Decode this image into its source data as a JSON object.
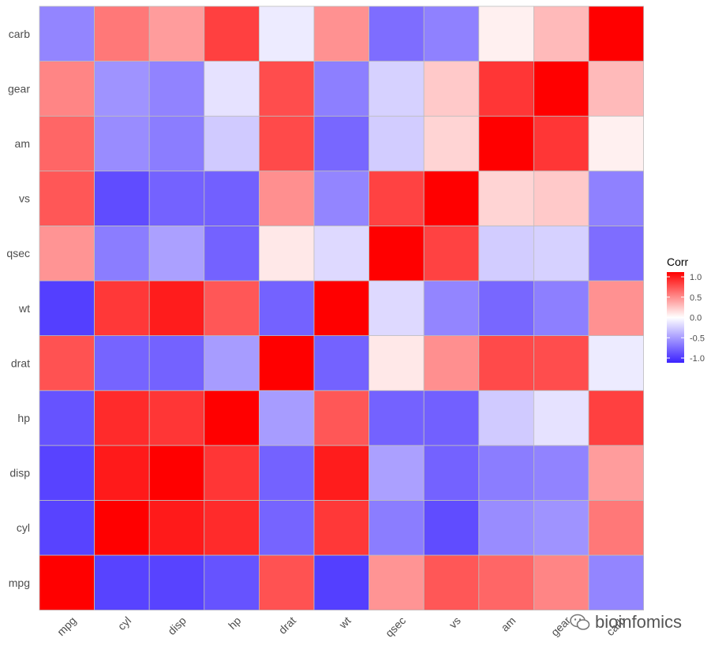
{
  "chart_data": {
    "type": "heatmap",
    "variables": [
      "mpg",
      "cyl",
      "disp",
      "hp",
      "drat",
      "wt",
      "qsec",
      "vs",
      "am",
      "gear",
      "carb"
    ],
    "x_categories": [
      "mpg",
      "cyl",
      "disp",
      "hp",
      "drat",
      "wt",
      "qsec",
      "vs",
      "am",
      "gear",
      "carb"
    ],
    "y_categories": [
      "mpg",
      "cyl",
      "disp",
      "hp",
      "drat",
      "wt",
      "qsec",
      "vs",
      "am",
      "gear",
      "carb"
    ],
    "matrix": [
      [
        1.0,
        -0.85,
        -0.85,
        -0.78,
        0.68,
        -0.87,
        0.42,
        0.66,
        0.6,
        0.48,
        -0.55
      ],
      [
        -0.85,
        1.0,
        0.9,
        0.83,
        -0.7,
        0.78,
        -0.59,
        -0.81,
        -0.52,
        -0.49,
        0.53
      ],
      [
        -0.85,
        0.9,
        1.0,
        0.79,
        -0.71,
        0.89,
        -0.43,
        -0.71,
        -0.59,
        -0.56,
        0.39
      ],
      [
        -0.78,
        0.83,
        0.79,
        1.0,
        -0.45,
        0.66,
        -0.71,
        -0.72,
        -0.24,
        -0.13,
        0.75
      ],
      [
        0.68,
        -0.7,
        -0.71,
        -0.45,
        1.0,
        -0.71,
        0.09,
        0.44,
        0.71,
        0.7,
        -0.09
      ],
      [
        -0.87,
        0.78,
        0.89,
        0.66,
        -0.71,
        1.0,
        -0.17,
        -0.55,
        -0.69,
        -0.58,
        0.43
      ],
      [
        0.42,
        -0.59,
        -0.43,
        -0.71,
        0.09,
        -0.17,
        1.0,
        0.74,
        -0.23,
        -0.21,
        -0.66
      ],
      [
        0.66,
        -0.81,
        -0.71,
        -0.72,
        0.44,
        -0.55,
        0.74,
        1.0,
        0.17,
        0.21,
        -0.57
      ],
      [
        0.6,
        -0.52,
        -0.59,
        -0.24,
        0.71,
        -0.69,
        -0.23,
        0.17,
        1.0,
        0.79,
        0.06
      ],
      [
        0.48,
        -0.49,
        -0.56,
        -0.13,
        0.7,
        -0.58,
        -0.21,
        0.21,
        0.79,
        1.0,
        0.27
      ],
      [
        -0.55,
        0.53,
        0.39,
        0.75,
        -0.09,
        0.43,
        -0.66,
        -0.57,
        0.06,
        0.27,
        1.0
      ]
    ],
    "legend": {
      "title": "Corr",
      "ticks": [
        1.0,
        0.5,
        0.0,
        -0.5,
        -1.0
      ],
      "tick_labels": [
        "1.0",
        "0.5",
        "0.0",
        "-0.5",
        "-1.0"
      ],
      "placement": "right"
    },
    "colors": {
      "low": "#3b22ff",
      "mid": "#ffffff",
      "high": "#ff0000",
      "cell_border": "#bdbdbd"
    },
    "range": [
      -1,
      1
    ],
    "grid": false
  },
  "watermark": {
    "text": "bioinfomics",
    "icon": "wechat-icon"
  }
}
